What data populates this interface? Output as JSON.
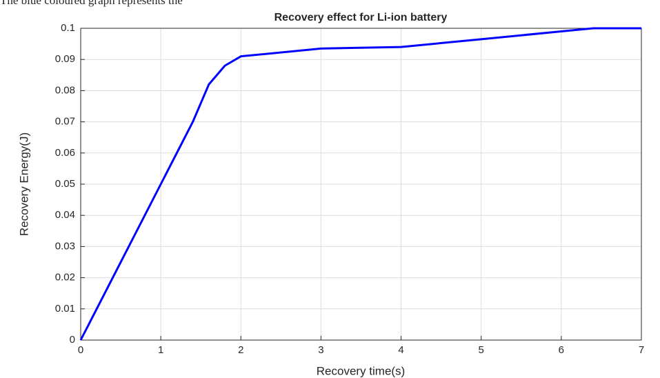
{
  "caption": "The blue coloured graph represents the",
  "chart_data": {
    "type": "line",
    "title": "Recovery effect for Li-ion battery",
    "xlabel": "Recovery time(s)",
    "ylabel": "Recovery Energy(J)",
    "x": [
      0,
      1,
      1.4,
      1.6,
      1.8,
      2,
      3,
      4,
      5,
      6,
      6.4,
      7
    ],
    "series": [
      {
        "name": "Recovery energy",
        "color": "#0000ff",
        "values": [
          0,
          0.05,
          0.07,
          0.082,
          0.088,
          0.091,
          0.0935,
          0.094,
          0.0965,
          0.099,
          0.1,
          0.1
        ]
      }
    ],
    "xlim": [
      0,
      7
    ],
    "xticks": [
      0,
      1,
      2,
      3,
      4,
      5,
      6,
      7
    ],
    "ylim": [
      0,
      0.1
    ],
    "yticks": [
      0,
      0.01,
      0.02,
      0.03,
      0.04,
      0.05,
      0.06,
      0.07,
      0.08,
      0.09,
      0.1
    ],
    "grid": true
  }
}
